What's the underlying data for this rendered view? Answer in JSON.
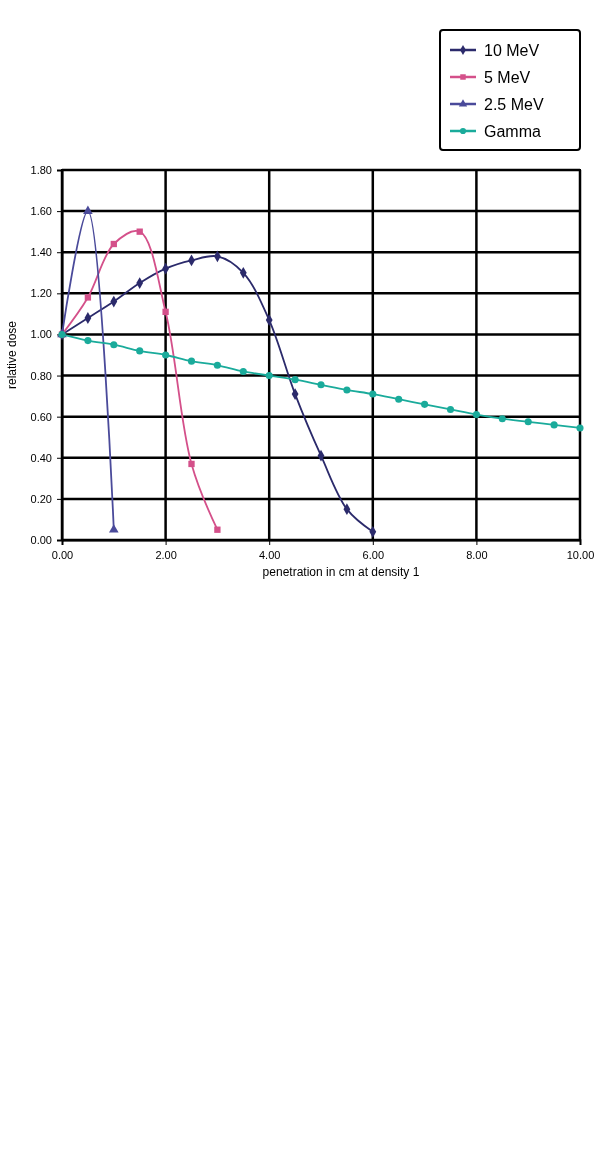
{
  "chart_data": {
    "type": "line",
    "xlabel": "penetration in cm at density 1",
    "ylabel": "relative dose",
    "xlim": [
      0,
      10
    ],
    "ylim": [
      0,
      1.8
    ],
    "xticks": [
      {
        "value": 0,
        "label": "0.00"
      },
      {
        "value": 2,
        "label": "2.00"
      },
      {
        "value": 4,
        "label": "4.00"
      },
      {
        "value": 6,
        "label": "6.00"
      },
      {
        "value": 8,
        "label": "8.00"
      },
      {
        "value": 10,
        "label": "10.00"
      }
    ],
    "yticks": [
      {
        "value": 0,
        "label": "0.00"
      },
      {
        "value": 0.2,
        "label": "0.20"
      },
      {
        "value": 0.4,
        "label": "0.40"
      },
      {
        "value": 0.6,
        "label": "0.60"
      },
      {
        "value": 0.8,
        "label": "0.80"
      },
      {
        "value": 1,
        "label": "1.00"
      },
      {
        "value": 1.2,
        "label": "1.20"
      },
      {
        "value": 1.4,
        "label": "1.40"
      },
      {
        "value": 1.6,
        "label": "1.60"
      },
      {
        "value": 1.8,
        "label": "1.80"
      }
    ],
    "grid": true,
    "legend": "right",
    "line_style": "solid",
    "series": [
      {
        "name": "10 MeV",
        "color": "#2b2a6b",
        "marker": "diamond",
        "x": [
          0,
          0.5,
          1,
          1.5,
          2,
          2.5,
          3,
          3.5,
          4,
          4.5,
          5,
          5.5,
          6
        ],
        "values": [
          1.0,
          1.08,
          1.16,
          1.25,
          1.32,
          1.36,
          1.38,
          1.3,
          1.07,
          0.71,
          0.41,
          0.15,
          0.04
        ]
      },
      {
        "name": "5 MeV",
        "color": "#d4508a",
        "marker": "square",
        "x": [
          0,
          0.5,
          1,
          1.5,
          2,
          2.5,
          3
        ],
        "values": [
          1.0,
          1.18,
          1.44,
          1.5,
          1.11,
          0.37,
          0.05
        ]
      },
      {
        "name": "2.5 MeV",
        "color": "#4a4a9a",
        "marker": "triangle",
        "x": [
          0,
          0.5,
          1
        ],
        "values": [
          1.0,
          1.6,
          0.05
        ]
      },
      {
        "name": "Gamma",
        "color": "#1aab9b",
        "marker": "circle",
        "x": [
          0,
          0.5,
          1,
          1.5,
          2,
          2.5,
          3,
          3.5,
          4,
          4.5,
          5,
          5.5,
          6,
          6.5,
          7,
          7.5,
          8,
          8.5,
          9,
          9.5,
          10
        ],
        "values": [
          1.0,
          0.97,
          0.95,
          0.92,
          0.9,
          0.87,
          0.85,
          0.82,
          0.8,
          0.78,
          0.755,
          0.73,
          0.71,
          0.685,
          0.66,
          0.635,
          0.61,
          0.59,
          0.575,
          0.56,
          0.545
        ]
      }
    ]
  }
}
